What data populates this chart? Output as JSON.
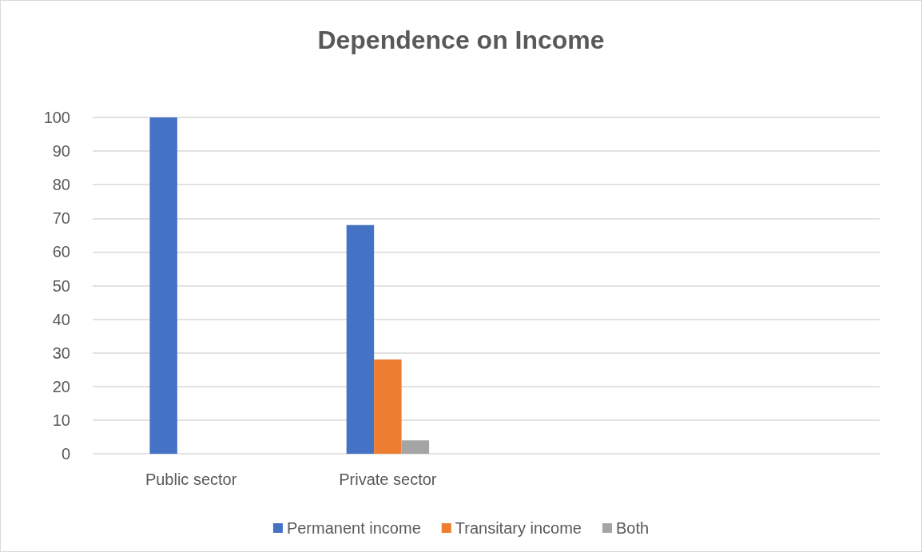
{
  "chart_data": {
    "type": "bar",
    "title": "Dependence on Income",
    "categories": [
      "Public sector",
      "Private sector",
      null,
      null
    ],
    "series": [
      {
        "name": "Permanent income",
        "color": "#4472c4",
        "values": [
          100,
          68,
          null,
          null
        ]
      },
      {
        "name": "Transitary income",
        "color": "#ed7d31",
        "values": [
          0,
          28,
          null,
          null
        ]
      },
      {
        "name": "Both",
        "color": "#a5a5a5",
        "values": [
          0,
          4,
          null,
          null
        ]
      }
    ],
    "ylim": [
      0,
      100
    ],
    "yticks": [
      0,
      10,
      20,
      30,
      40,
      50,
      60,
      70,
      80,
      90,
      100
    ],
    "grid": "y",
    "legend": "bottom"
  }
}
